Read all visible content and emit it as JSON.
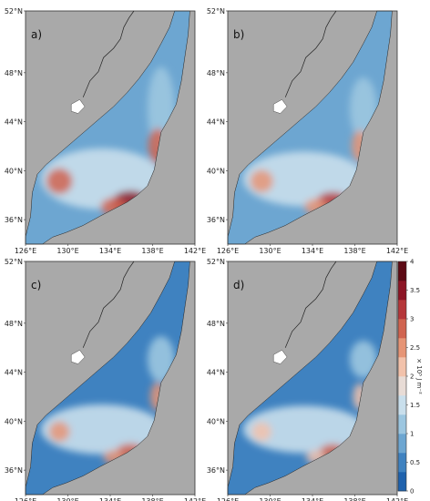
{
  "lat_ticks": [
    "36°N",
    "40°N",
    "44°N",
    "48°N",
    "52°N"
  ],
  "lon_ticks": [
    "126°E",
    "130°E",
    "134°E",
    "138°E",
    "142°E"
  ],
  "panels": [
    {
      "id": "a",
      "label": "a)",
      "intensity": 1.0
    },
    {
      "id": "b",
      "label": "b)",
      "intensity": 0.75
    },
    {
      "id": "c",
      "label": "c)",
      "intensity": 0.55
    },
    {
      "id": "d",
      "label": "d)",
      "intensity": 0.45
    }
  ],
  "colorbar": {
    "ticks": [
      "0",
      "0.5",
      "1",
      "1.5",
      "2",
      "2.5",
      "3",
      "3.5",
      "4"
    ],
    "units": "× 10⁵ J m⁻²",
    "range": [
      0,
      4
    ],
    "colors": [
      "#1f62ad",
      "#3f82c0",
      "#6da6d1",
      "#9cc6e0",
      "#c9dfec",
      "#e8dcd6",
      "#f2c2ab",
      "#e69576",
      "#d06450",
      "#b5373a",
      "#8c1525",
      "#5c0a14"
    ]
  },
  "colors": {
    "land": "#a9a9a9",
    "ocean_base": "#7fb2d8",
    "coast_line": "#222222"
  }
}
